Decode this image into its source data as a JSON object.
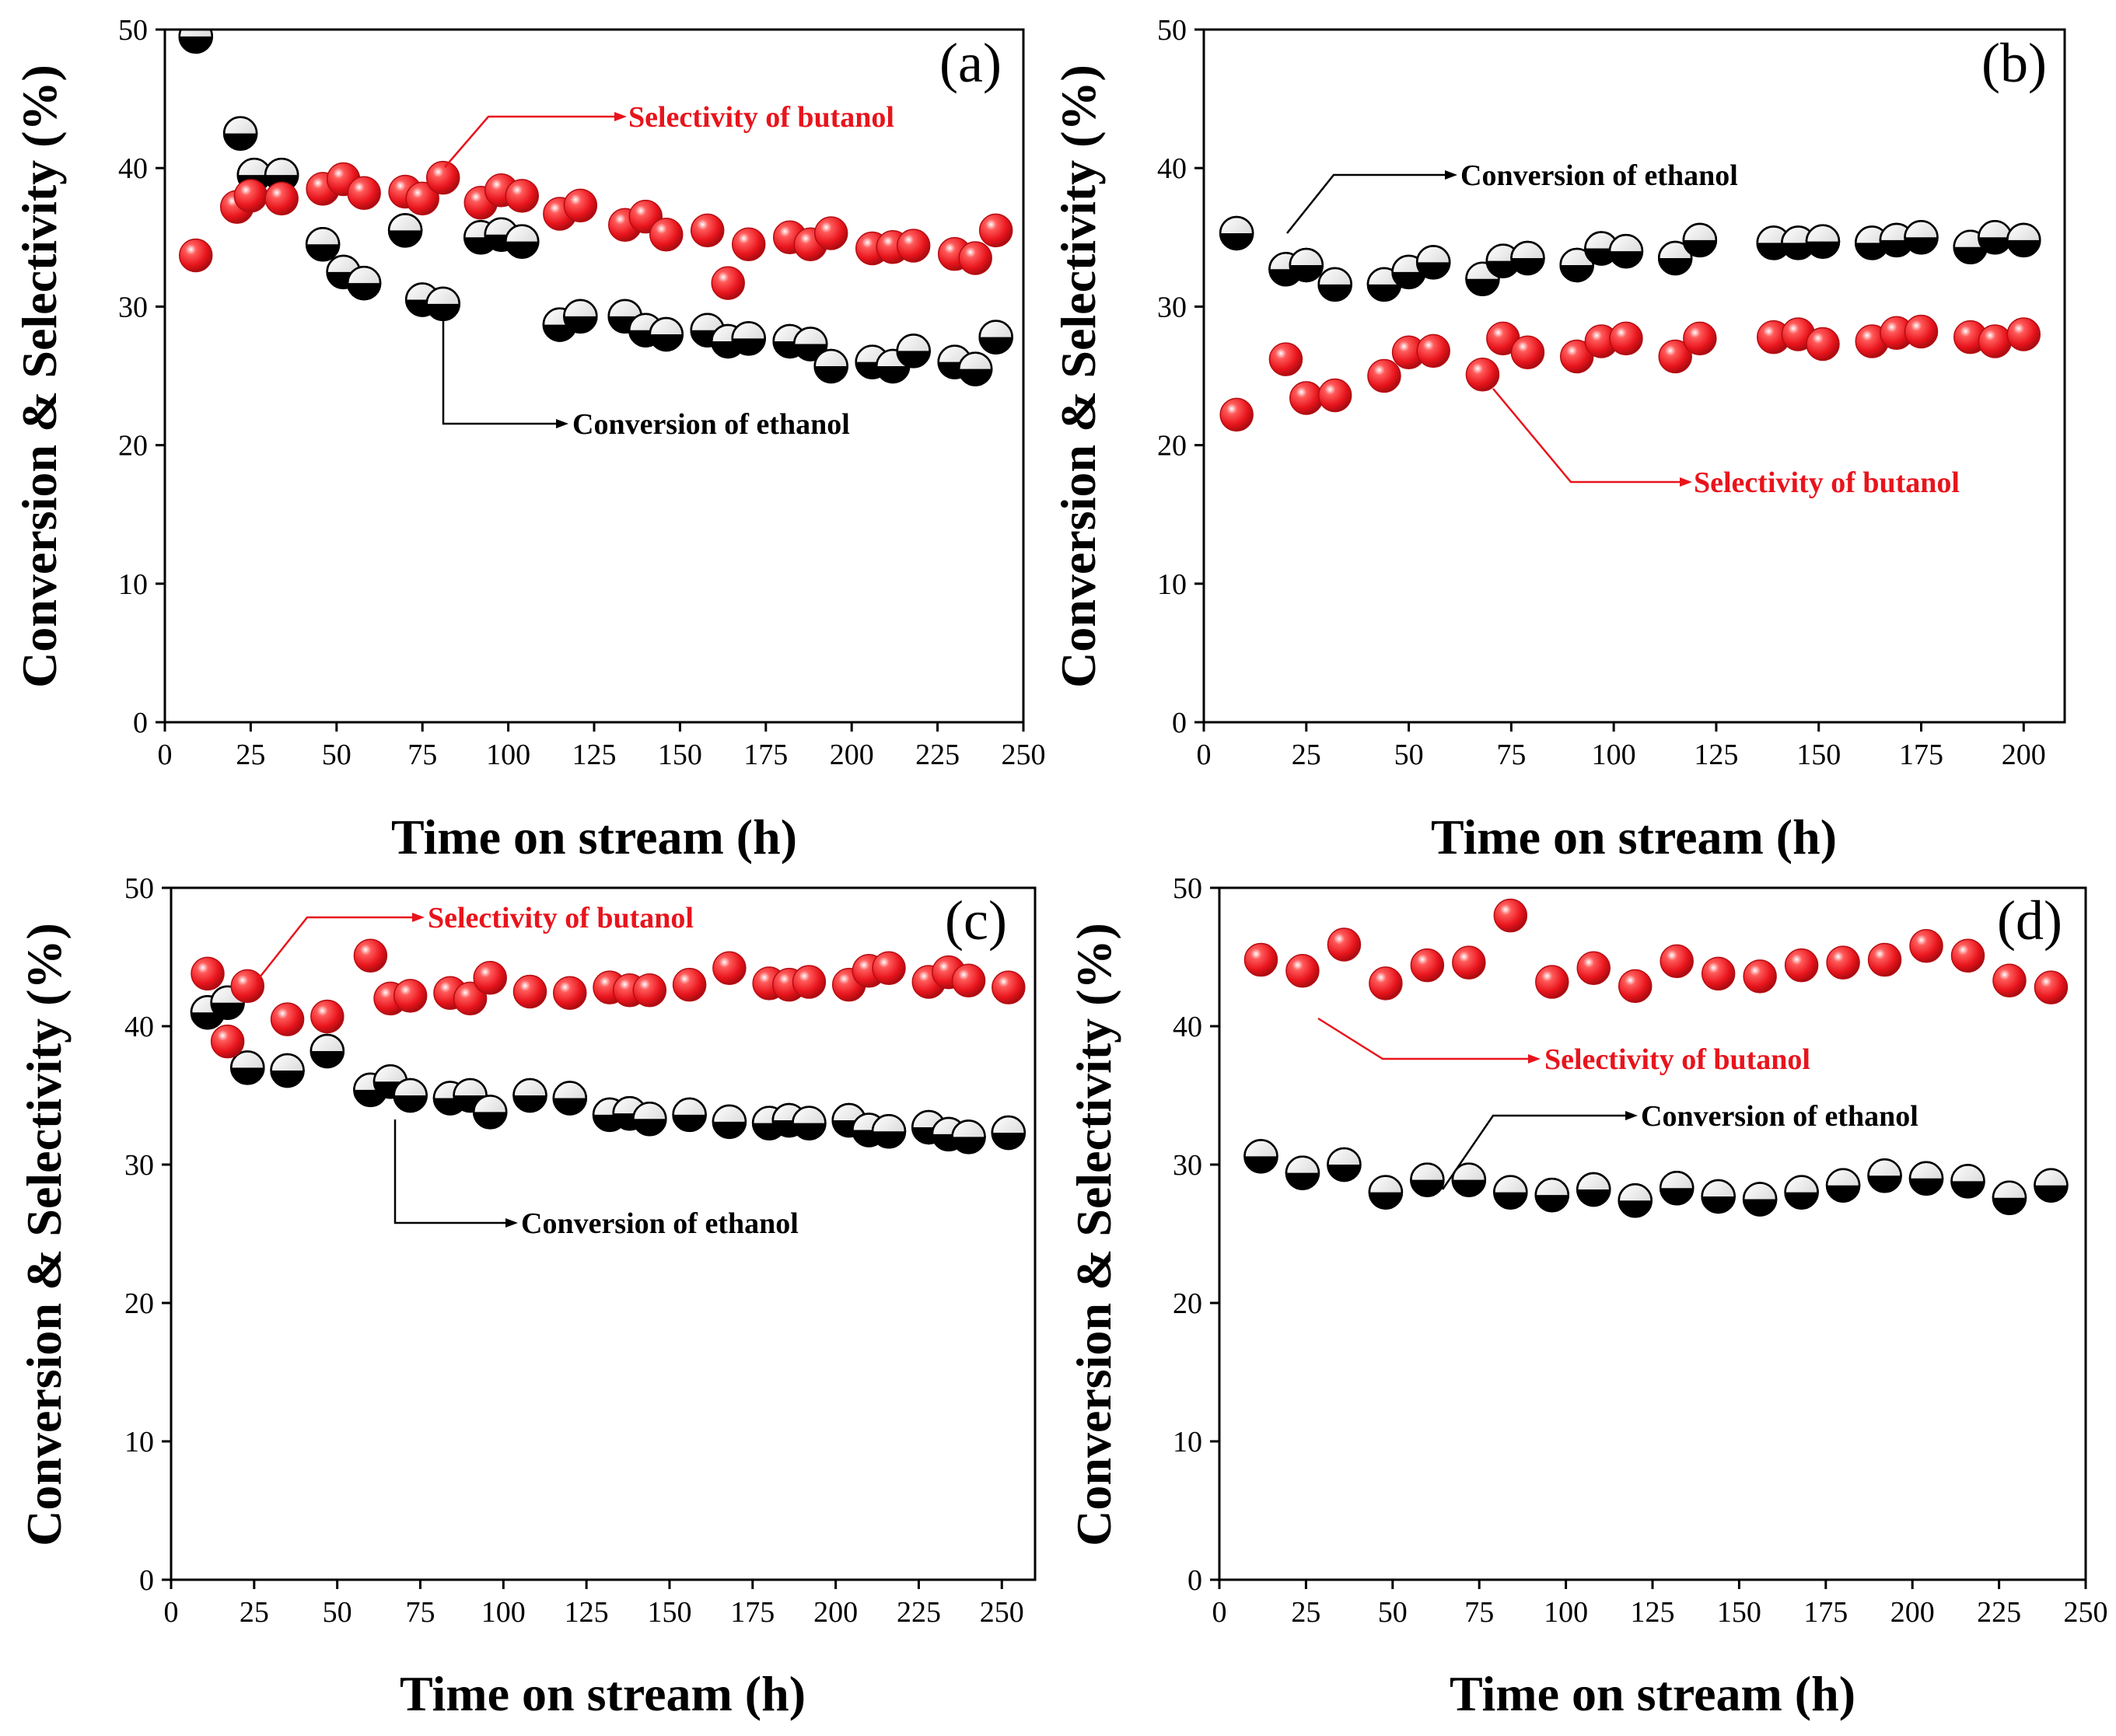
{
  "figure": {
    "colors": {
      "selectivity": "#e8141c",
      "conversion": "#000000",
      "axis": "#000000"
    }
  },
  "chart_data": [
    {
      "type": "scatter",
      "panel_label": "(a)",
      "xlabel": "Time on stream (h)",
      "ylabel": "Conversion & Selectivity (%)",
      "xlim": [
        0,
        250
      ],
      "ylim": [
        0,
        50
      ],
      "xticks": [
        0,
        25,
        50,
        75,
        100,
        125,
        150,
        175,
        200,
        225,
        250
      ],
      "yticks": [
        0,
        10,
        20,
        30,
        40,
        50
      ],
      "series": [
        {
          "name": "Conversion of ethanol",
          "x": [
            9,
            22,
            26,
            34,
            46,
            52,
            58,
            70,
            75,
            81,
            92,
            98,
            104,
            115,
            121,
            134,
            140,
            146,
            158,
            164,
            170,
            182,
            188,
            194,
            206,
            212,
            218,
            230,
            236,
            242
          ],
          "y": [
            49.5,
            42.5,
            39.5,
            39.5,
            34.5,
            32.5,
            31.7,
            35.5,
            30.5,
            30.2,
            35.0,
            35.2,
            34.7,
            28.7,
            29.3,
            29.3,
            28.3,
            28.0,
            28.3,
            27.5,
            27.7,
            27.5,
            27.3,
            25.7,
            26.0,
            25.7,
            26.8,
            26.0,
            25.5,
            27.8
          ]
        },
        {
          "name": "Selectivity of butanol",
          "x": [
            9,
            21,
            25,
            34,
            46,
            52,
            58,
            70,
            75,
            81,
            92,
            98,
            104,
            115,
            121,
            134,
            140,
            146,
            158,
            164,
            170,
            182,
            188,
            194,
            206,
            212,
            218,
            230,
            236,
            242
          ],
          "y": [
            33.7,
            37.2,
            38.0,
            37.8,
            38.5,
            39.2,
            38.2,
            38.3,
            37.8,
            39.3,
            37.5,
            38.4,
            38.0,
            36.7,
            37.3,
            35.9,
            36.5,
            35.2,
            35.5,
            31.7,
            34.5,
            35.0,
            34.5,
            35.3,
            34.2,
            34.3,
            34.4,
            33.8,
            33.5,
            35.5
          ]
        }
      ],
      "annotations": [
        {
          "text": "Selectivity of butanol",
          "series": "Selectivity of butanol"
        },
        {
          "text": "Conversion of ethanol",
          "series": "Conversion of ethanol"
        }
      ]
    },
    {
      "type": "scatter",
      "panel_label": "(b)",
      "xlabel": "Time on stream (h)",
      "ylabel": "Conversion & Selectivity (%)",
      "xlim": [
        0,
        210
      ],
      "ylim": [
        0,
        50
      ],
      "xticks": [
        0,
        25,
        50,
        75,
        100,
        125,
        150,
        175,
        200
      ],
      "yticks": [
        0,
        10,
        20,
        30,
        40,
        50
      ],
      "series": [
        {
          "name": "Conversion of ethanol",
          "x": [
            8,
            20,
            25,
            32,
            44,
            50,
            56,
            68,
            73,
            79,
            91,
            97,
            103,
            115,
            121,
            139,
            145,
            151,
            163,
            169,
            175,
            187,
            193,
            200
          ],
          "y": [
            35.3,
            32.7,
            33.0,
            31.6,
            31.6,
            32.5,
            33.2,
            32.0,
            33.3,
            33.5,
            33.0,
            34.2,
            34.0,
            33.5,
            34.8,
            34.6,
            34.6,
            34.7,
            34.6,
            34.8,
            35.0,
            34.3,
            35.0,
            34.8
          ]
        },
        {
          "name": "Selectivity of butanol",
          "x": [
            8,
            20,
            25,
            32,
            44,
            50,
            56,
            68,
            73,
            79,
            91,
            97,
            103,
            115,
            121,
            139,
            145,
            151,
            163,
            169,
            175,
            187,
            193,
            200
          ],
          "y": [
            22.2,
            26.2,
            23.4,
            23.6,
            25.0,
            26.7,
            26.8,
            25.1,
            27.7,
            26.7,
            26.4,
            27.5,
            27.7,
            26.4,
            27.7,
            27.8,
            28.0,
            27.3,
            27.5,
            28.1,
            28.2,
            27.8,
            27.5,
            28.0
          ]
        }
      ],
      "annotations": [
        {
          "text": "Conversion of ethanol",
          "series": "Conversion of ethanol"
        },
        {
          "text": "Selectivity of butanol",
          "series": "Selectivity of butanol"
        }
      ]
    },
    {
      "type": "scatter",
      "panel_label": "(c)",
      "xlabel": "Time on stream (h)",
      "ylabel": "Conversion & Selectivity (%)",
      "xlim": [
        0,
        260
      ],
      "ylim": [
        0,
        50
      ],
      "xticks": [
        0,
        25,
        50,
        75,
        100,
        125,
        150,
        175,
        200,
        225,
        250
      ],
      "yticks": [
        0,
        10,
        20,
        30,
        40,
        50
      ],
      "series": [
        {
          "name": "Conversion of ethanol",
          "x": [
            11,
            17,
            23,
            35,
            47,
            60,
            66,
            72,
            84,
            90,
            96,
            108,
            120,
            132,
            138,
            144,
            156,
            168,
            180,
            186,
            192,
            204,
            210,
            216,
            228,
            234,
            240,
            252
          ],
          "y": [
            41.0,
            41.7,
            37.0,
            36.8,
            38.2,
            35.4,
            36.0,
            35.0,
            34.8,
            35.0,
            33.8,
            35.0,
            34.8,
            33.6,
            33.7,
            33.3,
            33.6,
            33.1,
            33.0,
            33.2,
            33.0,
            33.2,
            32.5,
            32.4,
            32.7,
            32.2,
            32.0,
            32.3
          ]
        },
        {
          "name": "Selectivity of butanol",
          "x": [
            11,
            17,
            23,
            35,
            47,
            60,
            66,
            72,
            84,
            90,
            96,
            108,
            120,
            132,
            138,
            144,
            156,
            168,
            180,
            186,
            192,
            204,
            210,
            216,
            228,
            234,
            240,
            252
          ],
          "y": [
            43.8,
            38.9,
            42.9,
            40.5,
            40.7,
            45.1,
            42.0,
            42.2,
            42.4,
            42.0,
            43.5,
            42.5,
            42.4,
            42.8,
            42.6,
            42.6,
            43.0,
            44.2,
            43.1,
            43.0,
            43.2,
            43.0,
            44.0,
            44.2,
            43.2,
            43.9,
            43.3,
            42.8
          ]
        }
      ],
      "annotations": [
        {
          "text": "Selectivity of butanol",
          "series": "Selectivity of butanol"
        },
        {
          "text": "Conversion of ethanol",
          "series": "Conversion of ethanol"
        }
      ]
    },
    {
      "type": "scatter",
      "panel_label": "(d)",
      "xlabel": "Time on stream (h)",
      "ylabel": "Conversion & Selectivity (%)",
      "xlim": [
        0,
        250
      ],
      "ylim": [
        0,
        50
      ],
      "xticks": [
        0,
        25,
        50,
        75,
        100,
        125,
        150,
        175,
        200,
        225,
        250
      ],
      "yticks": [
        0,
        10,
        20,
        30,
        40,
        50
      ],
      "series": [
        {
          "name": "Conversion of ethanol",
          "x": [
            12,
            24,
            36,
            48,
            60,
            72,
            84,
            96,
            108,
            120,
            132,
            144,
            156,
            168,
            180,
            192,
            204,
            216,
            228,
            240
          ],
          "y": [
            30.6,
            29.4,
            30.0,
            28.0,
            28.9,
            28.9,
            28.0,
            27.8,
            28.2,
            27.4,
            28.3,
            27.7,
            27.5,
            28.0,
            28.5,
            29.2,
            29.0,
            28.8,
            27.6,
            28.5
          ]
        },
        {
          "name": "Selectivity of butanol",
          "x": [
            12,
            24,
            36,
            48,
            60,
            72,
            84,
            96,
            108,
            120,
            132,
            144,
            156,
            168,
            180,
            192,
            204,
            216,
            228,
            240
          ],
          "y": [
            44.8,
            44.0,
            45.9,
            43.1,
            44.4,
            44.6,
            48.0,
            43.2,
            44.2,
            42.9,
            44.7,
            43.8,
            43.6,
            44.4,
            44.6,
            44.8,
            45.8,
            45.1,
            43.3,
            42.8
          ]
        }
      ],
      "annotations": [
        {
          "text": "Selectivity of butanol",
          "series": "Selectivity of butanol"
        },
        {
          "text": "Conversion of ethanol",
          "series": "Conversion of ethanol"
        }
      ]
    }
  ]
}
